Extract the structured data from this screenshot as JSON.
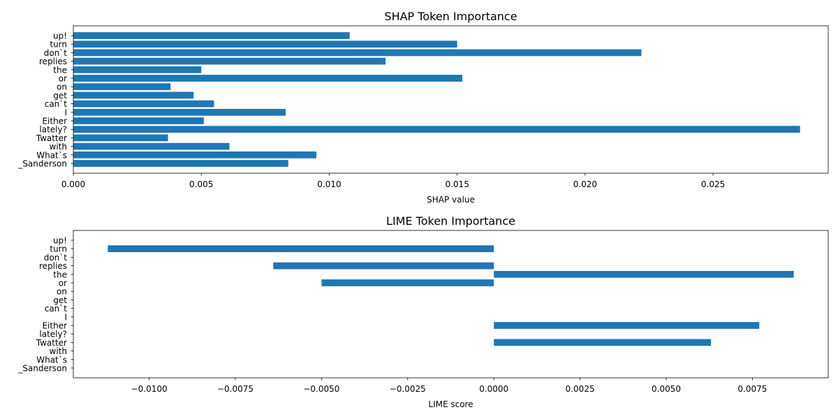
{
  "chart_data": [
    {
      "type": "bar",
      "orientation": "horizontal",
      "title": "SHAP Token Importance",
      "xlabel": "SHAP value",
      "ylabel": "",
      "xlim": [
        0,
        0.0295
      ],
      "xticks": [
        0,
        0.005,
        0.01,
        0.015,
        0.02,
        0.025
      ],
      "xtick_labels": [
        "0.000",
        "0.005",
        "0.010",
        "0.015",
        "0.020",
        "0.025"
      ],
      "grid": false,
      "bar_color": "#1f77b4",
      "categories": [
        "up!",
        "turn",
        "don`t",
        "replies",
        "the",
        "or",
        "on",
        "get",
        "can`t",
        "I",
        "Either",
        "lately?",
        "Twatter",
        "with",
        "What`s",
        "_Sanderson"
      ],
      "values": [
        0.0108,
        0.015,
        0.0222,
        0.0122,
        0.005,
        0.0152,
        0.0038,
        0.0047,
        0.0055,
        0.0083,
        0.0051,
        0.0284,
        0.0037,
        0.0061,
        0.0095,
        0.0084
      ]
    },
    {
      "type": "bar",
      "orientation": "horizontal",
      "title": "LIME Token Importance",
      "xlabel": "LIME score",
      "ylabel": "",
      "xlim": [
        -0.0122,
        0.0097
      ],
      "xticks": [
        -0.01,
        -0.0075,
        -0.005,
        -0.0025,
        0,
        0.0025,
        0.005,
        0.0075
      ],
      "xtick_labels": [
        "−0.0100",
        "−0.0075",
        "−0.0050",
        "−0.0025",
        "0.0000",
        "0.0025",
        "0.0050",
        "0.0075"
      ],
      "grid": false,
      "bar_color": "#1f77b4",
      "categories": [
        "up!",
        "turn",
        "don`t",
        "replies",
        "the",
        "or",
        "on",
        "get",
        "can`t",
        "I",
        "Either",
        "lately?",
        "Twatter",
        "with",
        "What`s",
        "_Sanderson"
      ],
      "values": [
        0,
        -0.0112,
        0,
        -0.0064,
        0.0087,
        -0.005,
        0,
        0,
        0,
        0,
        0.0077,
        0,
        0.0063,
        0,
        0,
        0
      ]
    }
  ]
}
